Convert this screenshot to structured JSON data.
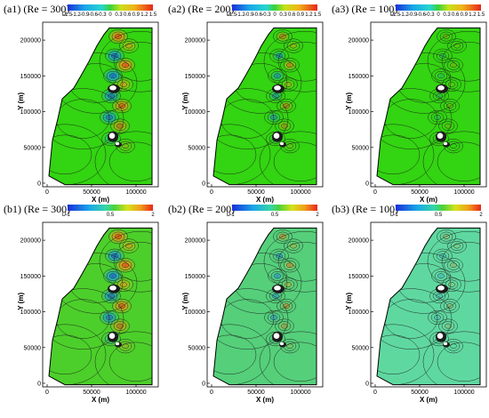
{
  "chart_data": [
    {
      "id": "a1",
      "type": "heatmap",
      "title": "(a1)",
      "title_re": "(Re = 300)",
      "xlabel": "X (m)",
      "ylabel": "Y (m)",
      "xlim": [
        -5000,
        125000
      ],
      "ylim": [
        -5000,
        225000
      ],
      "xticks": [
        0,
        50000,
        100000
      ],
      "yticks": [
        0,
        50000,
        100000,
        150000,
        200000
      ],
      "colorbar": {
        "var": "U",
        "ticks": [
          "-1.5",
          "-1.2",
          "-0.9",
          "-0.6",
          "-0.3",
          "0",
          "0.3",
          "0.6",
          "0.9",
          "1.2",
          "1.5"
        ],
        "range": [
          -1.5,
          1.5
        ]
      },
      "scale": 1.0,
      "grid": false
    },
    {
      "id": "a2",
      "type": "heatmap",
      "title": "(a2)",
      "title_re": "(Re = 200)",
      "xlabel": "X (m)",
      "ylabel": "Y (m)",
      "xlim": [
        -5000,
        125000
      ],
      "ylim": [
        -5000,
        225000
      ],
      "xticks": [
        0,
        50000,
        100000
      ],
      "yticks": [
        0,
        50000,
        100000,
        150000,
        200000
      ],
      "colorbar": {
        "var": "U",
        "ticks": [
          "-1.5",
          "-1.2",
          "-0.9",
          "-0.6",
          "-0.3",
          "0",
          "0.3",
          "0.6",
          "0.9",
          "1.2",
          "1.5"
        ],
        "range": [
          -1.5,
          1.5
        ]
      },
      "scale": 0.7,
      "grid": false
    },
    {
      "id": "a3",
      "type": "heatmap",
      "title": "(a3)",
      "title_re": "(Re = 100)",
      "xlabel": "X (m)",
      "ylabel": "Y (m)",
      "xlim": [
        -5000,
        125000
      ],
      "ylim": [
        -5000,
        225000
      ],
      "xticks": [
        0,
        50000,
        100000
      ],
      "yticks": [
        0,
        50000,
        100000,
        150000,
        200000
      ],
      "colorbar": {
        "var": "U",
        "ticks": [
          "-1.5",
          "-1.2",
          "-0.9",
          "-0.6",
          "-0.3",
          "0",
          "0.3",
          "0.6",
          "0.9",
          "1.2",
          "1.5"
        ],
        "range": [
          -1.5,
          1.5
        ]
      },
      "scale": 0.3,
      "grid": false
    },
    {
      "id": "b1",
      "type": "heatmap",
      "title": "(b1)",
      "title_re": "(Re = 300)",
      "xlabel": "X (m)",
      "ylabel": "Y (m)",
      "xlim": [
        -5000,
        125000
      ],
      "ylim": [
        -5000,
        225000
      ],
      "xticks": [
        0,
        50000,
        100000
      ],
      "yticks": [
        0,
        50000,
        100000,
        150000,
        200000
      ],
      "colorbar": {
        "var": "U",
        "ticks": [
          "-1",
          "0.5",
          "2"
        ],
        "range": [
          -1,
          2
        ]
      },
      "scale": 1.0,
      "grid": false
    },
    {
      "id": "b2",
      "type": "heatmap",
      "title": "(b2)",
      "title_re": "(Re = 200)",
      "xlabel": "X (m)",
      "ylabel": "Y (m)",
      "xlim": [
        -5000,
        125000
      ],
      "ylim": [
        -5000,
        225000
      ],
      "xticks": [
        0,
        50000,
        100000
      ],
      "yticks": [
        0,
        50000,
        100000,
        150000,
        200000
      ],
      "colorbar": {
        "var": "U",
        "ticks": [
          "-1",
          "0.5",
          "2"
        ],
        "range": [
          -1,
          2
        ]
      },
      "scale": 0.6,
      "grid": false
    },
    {
      "id": "b3",
      "type": "heatmap",
      "title": "(b3)",
      "title_re": "(Re = 100)",
      "xlabel": "X (m)",
      "ylabel": "Y (m)",
      "xlim": [
        -5000,
        125000
      ],
      "ylim": [
        -5000,
        225000
      ],
      "xticks": [
        0,
        50000,
        100000
      ],
      "yticks": [
        0,
        50000,
        100000,
        150000,
        200000
      ],
      "colorbar": {
        "var": "U",
        "ticks": [
          "-1",
          "0.5",
          "2"
        ],
        "range": [
          -1,
          2
        ]
      },
      "scale": 0.3,
      "grid": false
    }
  ],
  "colors": {
    "field_a": "#33d411",
    "field_b1": "#4ccf2a",
    "field_b2": "#55cf7a",
    "field_b3": "#5fd8a0",
    "positive": "#e8421a",
    "negative": "#1a8fe8",
    "contour": "#1b1b1b",
    "land": "#ffffff"
  }
}
